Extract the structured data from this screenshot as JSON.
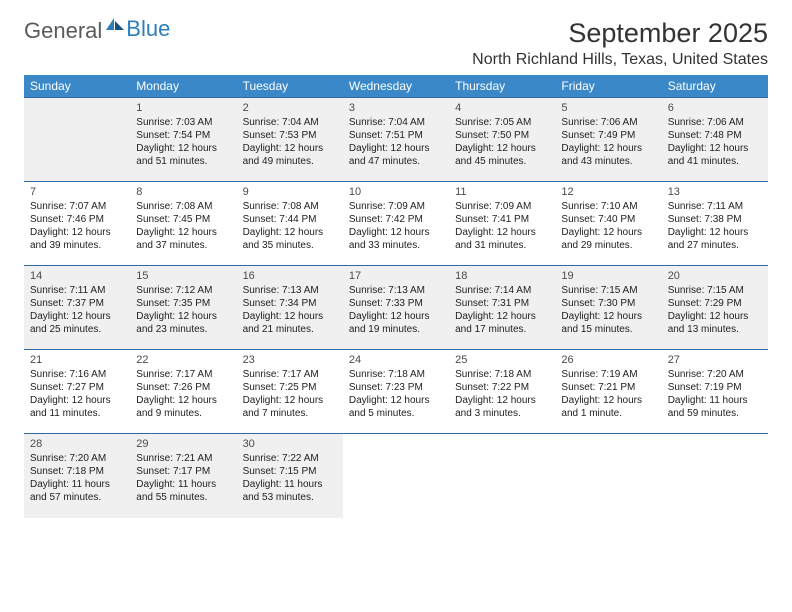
{
  "brand": {
    "word1": "General",
    "word2": "Blue"
  },
  "title": "September 2025",
  "location": "North Richland Hills, Texas, United States",
  "dayHeaders": [
    "Sunday",
    "Monday",
    "Tuesday",
    "Wednesday",
    "Thursday",
    "Friday",
    "Saturday"
  ],
  "colors": {
    "header_bg": "#3a88c7",
    "header_text": "#ffffff",
    "row_border": "#2f6aa5",
    "shaded_bg": "#f0f0f0",
    "text": "#222222",
    "title_text": "#333333",
    "logo_gray": "#5a5a5a",
    "logo_blue": "#2c7fb8"
  },
  "weeks": [
    {
      "shaded": true,
      "days": [
        null,
        {
          "n": "1",
          "sr": "Sunrise: 7:03 AM",
          "ss": "Sunset: 7:54 PM",
          "d1": "Daylight: 12 hours",
          "d2": "and 51 minutes."
        },
        {
          "n": "2",
          "sr": "Sunrise: 7:04 AM",
          "ss": "Sunset: 7:53 PM",
          "d1": "Daylight: 12 hours",
          "d2": "and 49 minutes."
        },
        {
          "n": "3",
          "sr": "Sunrise: 7:04 AM",
          "ss": "Sunset: 7:51 PM",
          "d1": "Daylight: 12 hours",
          "d2": "and 47 minutes."
        },
        {
          "n": "4",
          "sr": "Sunrise: 7:05 AM",
          "ss": "Sunset: 7:50 PM",
          "d1": "Daylight: 12 hours",
          "d2": "and 45 minutes."
        },
        {
          "n": "5",
          "sr": "Sunrise: 7:06 AM",
          "ss": "Sunset: 7:49 PM",
          "d1": "Daylight: 12 hours",
          "d2": "and 43 minutes."
        },
        {
          "n": "6",
          "sr": "Sunrise: 7:06 AM",
          "ss": "Sunset: 7:48 PM",
          "d1": "Daylight: 12 hours",
          "d2": "and 41 minutes."
        }
      ]
    },
    {
      "shaded": false,
      "days": [
        {
          "n": "7",
          "sr": "Sunrise: 7:07 AM",
          "ss": "Sunset: 7:46 PM",
          "d1": "Daylight: 12 hours",
          "d2": "and 39 minutes."
        },
        {
          "n": "8",
          "sr": "Sunrise: 7:08 AM",
          "ss": "Sunset: 7:45 PM",
          "d1": "Daylight: 12 hours",
          "d2": "and 37 minutes."
        },
        {
          "n": "9",
          "sr": "Sunrise: 7:08 AM",
          "ss": "Sunset: 7:44 PM",
          "d1": "Daylight: 12 hours",
          "d2": "and 35 minutes."
        },
        {
          "n": "10",
          "sr": "Sunrise: 7:09 AM",
          "ss": "Sunset: 7:42 PM",
          "d1": "Daylight: 12 hours",
          "d2": "and 33 minutes."
        },
        {
          "n": "11",
          "sr": "Sunrise: 7:09 AM",
          "ss": "Sunset: 7:41 PM",
          "d1": "Daylight: 12 hours",
          "d2": "and 31 minutes."
        },
        {
          "n": "12",
          "sr": "Sunrise: 7:10 AM",
          "ss": "Sunset: 7:40 PM",
          "d1": "Daylight: 12 hours",
          "d2": "and 29 minutes."
        },
        {
          "n": "13",
          "sr": "Sunrise: 7:11 AM",
          "ss": "Sunset: 7:38 PM",
          "d1": "Daylight: 12 hours",
          "d2": "and 27 minutes."
        }
      ]
    },
    {
      "shaded": true,
      "days": [
        {
          "n": "14",
          "sr": "Sunrise: 7:11 AM",
          "ss": "Sunset: 7:37 PM",
          "d1": "Daylight: 12 hours",
          "d2": "and 25 minutes."
        },
        {
          "n": "15",
          "sr": "Sunrise: 7:12 AM",
          "ss": "Sunset: 7:35 PM",
          "d1": "Daylight: 12 hours",
          "d2": "and 23 minutes."
        },
        {
          "n": "16",
          "sr": "Sunrise: 7:13 AM",
          "ss": "Sunset: 7:34 PM",
          "d1": "Daylight: 12 hours",
          "d2": "and 21 minutes."
        },
        {
          "n": "17",
          "sr": "Sunrise: 7:13 AM",
          "ss": "Sunset: 7:33 PM",
          "d1": "Daylight: 12 hours",
          "d2": "and 19 minutes."
        },
        {
          "n": "18",
          "sr": "Sunrise: 7:14 AM",
          "ss": "Sunset: 7:31 PM",
          "d1": "Daylight: 12 hours",
          "d2": "and 17 minutes."
        },
        {
          "n": "19",
          "sr": "Sunrise: 7:15 AM",
          "ss": "Sunset: 7:30 PM",
          "d1": "Daylight: 12 hours",
          "d2": "and 15 minutes."
        },
        {
          "n": "20",
          "sr": "Sunrise: 7:15 AM",
          "ss": "Sunset: 7:29 PM",
          "d1": "Daylight: 12 hours",
          "d2": "and 13 minutes."
        }
      ]
    },
    {
      "shaded": false,
      "days": [
        {
          "n": "21",
          "sr": "Sunrise: 7:16 AM",
          "ss": "Sunset: 7:27 PM",
          "d1": "Daylight: 12 hours",
          "d2": "and 11 minutes."
        },
        {
          "n": "22",
          "sr": "Sunrise: 7:17 AM",
          "ss": "Sunset: 7:26 PM",
          "d1": "Daylight: 12 hours",
          "d2": "and 9 minutes."
        },
        {
          "n": "23",
          "sr": "Sunrise: 7:17 AM",
          "ss": "Sunset: 7:25 PM",
          "d1": "Daylight: 12 hours",
          "d2": "and 7 minutes."
        },
        {
          "n": "24",
          "sr": "Sunrise: 7:18 AM",
          "ss": "Sunset: 7:23 PM",
          "d1": "Daylight: 12 hours",
          "d2": "and 5 minutes."
        },
        {
          "n": "25",
          "sr": "Sunrise: 7:18 AM",
          "ss": "Sunset: 7:22 PM",
          "d1": "Daylight: 12 hours",
          "d2": "and 3 minutes."
        },
        {
          "n": "26",
          "sr": "Sunrise: 7:19 AM",
          "ss": "Sunset: 7:21 PM",
          "d1": "Daylight: 12 hours",
          "d2": "and 1 minute."
        },
        {
          "n": "27",
          "sr": "Sunrise: 7:20 AM",
          "ss": "Sunset: 7:19 PM",
          "d1": "Daylight: 11 hours",
          "d2": "and 59 minutes."
        }
      ]
    },
    {
      "shaded": true,
      "days": [
        {
          "n": "28",
          "sr": "Sunrise: 7:20 AM",
          "ss": "Sunset: 7:18 PM",
          "d1": "Daylight: 11 hours",
          "d2": "and 57 minutes."
        },
        {
          "n": "29",
          "sr": "Sunrise: 7:21 AM",
          "ss": "Sunset: 7:17 PM",
          "d1": "Daylight: 11 hours",
          "d2": "and 55 minutes."
        },
        {
          "n": "30",
          "sr": "Sunrise: 7:22 AM",
          "ss": "Sunset: 7:15 PM",
          "d1": "Daylight: 11 hours",
          "d2": "and 53 minutes."
        },
        null,
        null,
        null,
        null
      ]
    }
  ]
}
